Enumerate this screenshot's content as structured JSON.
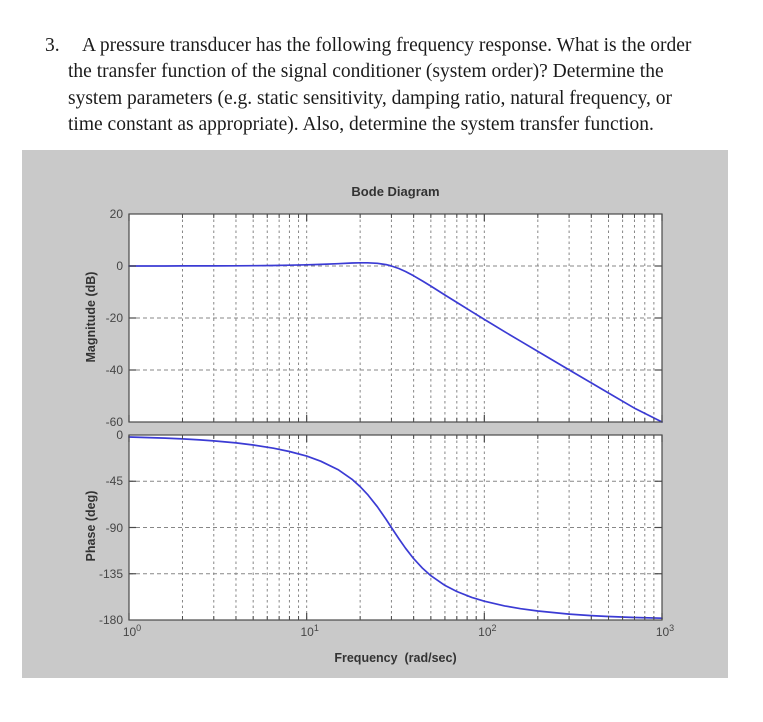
{
  "problem": {
    "number": "3.",
    "text": "A pressure transducer has the following frequency response. What is the order\nthe transfer function of the signal conditioner (system order)? Determine the\nsystem parameters (e.g. static sensitivity, damping ratio, natural frequency, or\ntime constant as appropriate). Also, determine the system transfer function."
  },
  "figure": {
    "title": "Bode Diagram",
    "xlabel": "Frequency  (rad/sec)",
    "magnitude_ylabel": "Magnitude (dB)",
    "phase_ylabel": "Phase (deg)",
    "colors": {
      "figure_bg": "#c9c9c9",
      "plot_bg": "#ffffff",
      "curve": "#3b3bd4",
      "grid": "#878787",
      "axis": "#4a4a4a"
    }
  },
  "chart_data": [
    {
      "type": "line",
      "name": "magnitude",
      "title": "Bode Diagram",
      "ylabel": "Magnitude (dB)",
      "xscale": "log",
      "xlim": [
        1,
        1000
      ],
      "ylim": [
        -60,
        20
      ],
      "yticks": [
        20,
        0,
        -20,
        -40,
        -60
      ],
      "xtick_exponents": [
        0,
        1,
        2,
        3
      ],
      "grid": true,
      "line_color": "#3b3bd4",
      "x": [
        1,
        1.3,
        1.6,
        2,
        2.5,
        3,
        4,
        5,
        6.5,
        8,
        10,
        12,
        15,
        18,
        20,
        22,
        25,
        28,
        30,
        33,
        36,
        40,
        45,
        50,
        60,
        70,
        85,
        100,
        130,
        160,
        200,
        300,
        400,
        500,
        700,
        1000
      ],
      "y": [
        0,
        0.01,
        0.01,
        0.02,
        0.03,
        0.04,
        0.08,
        0.12,
        0.2,
        0.3,
        0.45,
        0.63,
        0.9,
        1.14,
        1.23,
        1.24,
        1.04,
        0.52,
        0,
        -0.98,
        -2.13,
        -3.77,
        -5.81,
        -7.74,
        -11.14,
        -14.01,
        -17.59,
        -20.54,
        -25.25,
        -28.93,
        -32.86,
        -39.96,
        -44.97,
        -48.86,
        -54.71,
        -60.91
      ]
    },
    {
      "type": "line",
      "name": "phase",
      "ylabel": "Phase (deg)",
      "xlabel": "Frequency  (rad/sec)",
      "xscale": "log",
      "xlim": [
        1,
        1000
      ],
      "ylim": [
        -180,
        0
      ],
      "yticks": [
        0,
        -45,
        -90,
        -135,
        -180
      ],
      "xtick_exponents": [
        0,
        1,
        2,
        3
      ],
      "grid": true,
      "line_color": "#3b3bd4",
      "x": [
        1,
        1.3,
        1.6,
        2,
        2.5,
        3,
        4,
        5,
        6.5,
        8,
        10,
        12,
        15,
        18,
        20,
        22,
        25,
        28,
        30,
        33,
        36,
        40,
        45,
        50,
        60,
        70,
        85,
        100,
        130,
        160,
        200,
        300,
        400,
        500,
        700,
        1000
      ],
      "y": [
        -1.91,
        -2.49,
        -3.06,
        -3.83,
        -4.8,
        -5.77,
        -7.73,
        -9.73,
        -12.81,
        -16.02,
        -20.56,
        -25.46,
        -33.69,
        -43.15,
        -50.19,
        -57.78,
        -69.86,
        -82.14,
        -90,
        -100.81,
        -110.14,
        -120.26,
        -129.81,
        -136.85,
        -146.31,
        -152.3,
        -158.04,
        -161.75,
        -166.3,
        -169,
        -171.28,
        -174.23,
        -175.69,
        -176.55,
        -177.54,
        -178.28
      ]
    }
  ]
}
